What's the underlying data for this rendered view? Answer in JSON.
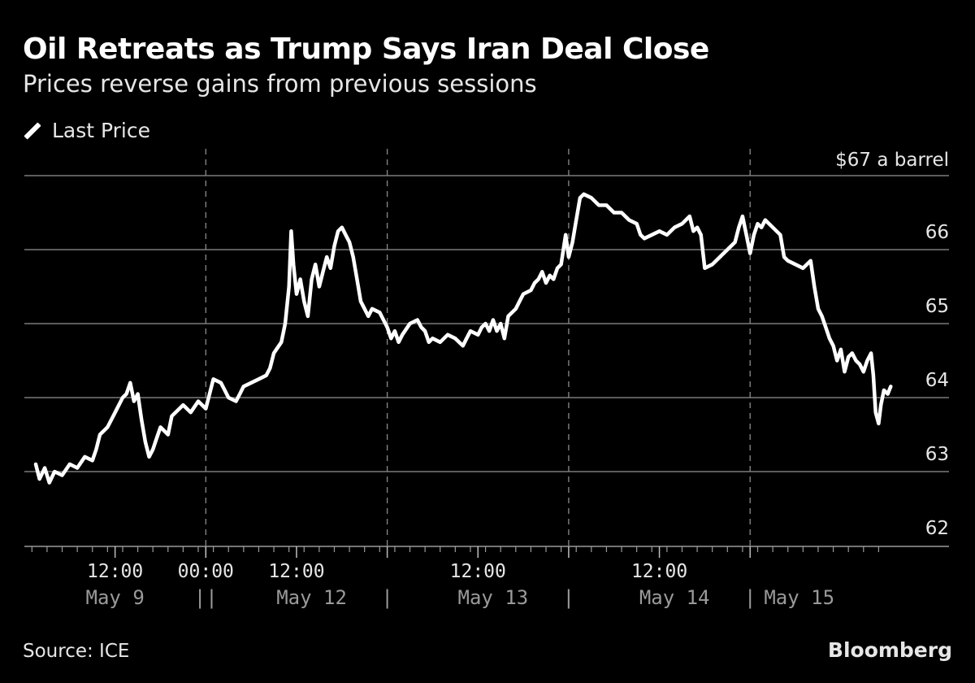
{
  "chart_data": {
    "type": "line",
    "title": "Oil Retreats as Trump Says Iran Deal Close",
    "subtitle": "Prices reverse gains from previous sessions",
    "legend": [
      "Last Price"
    ],
    "unit_label": "$67 a barrel",
    "source": "Source: ICE",
    "brand": "Bloomberg",
    "ylim": [
      62,
      67
    ],
    "y_ticks": [
      62,
      63,
      64,
      65,
      66,
      67
    ],
    "y_tick_labels": [
      "62",
      "63",
      "64",
      "65",
      "66",
      "$67 a barrel"
    ],
    "x_time_ticks": [
      {
        "x": 12,
        "label": "12:00"
      },
      {
        "x": 24,
        "label": "00:00"
      },
      {
        "x": 36,
        "label": "12:00"
      },
      {
        "x": 60,
        "label": "12:00"
      },
      {
        "x": 84,
        "label": "12:00"
      }
    ],
    "x_date_labels": [
      {
        "x": 12,
        "label": "May 9"
      },
      {
        "x": 24,
        "label": "||"
      },
      {
        "x": 38,
        "label": "May 12"
      },
      {
        "x": 48,
        "label": "|"
      },
      {
        "x": 62,
        "label": "May 13"
      },
      {
        "x": 72,
        "label": "|"
      },
      {
        "x": 86,
        "label": "May 14"
      },
      {
        "x": 96,
        "label": "|"
      },
      {
        "x": 102.5,
        "label": "May 15"
      }
    ],
    "session_dividers": [
      24,
      48,
      72,
      96
    ],
    "xlim": [
      0,
      115
    ],
    "series": [
      {
        "name": "Last Price",
        "points": [
          [
            1.5,
            63.1
          ],
          [
            2,
            62.9
          ],
          [
            2.7,
            63.05
          ],
          [
            3.3,
            62.85
          ],
          [
            4,
            63.0
          ],
          [
            5,
            62.95
          ],
          [
            6,
            63.1
          ],
          [
            7,
            63.05
          ],
          [
            8,
            63.2
          ],
          [
            9,
            63.15
          ],
          [
            9.5,
            63.3
          ],
          [
            10,
            63.5
          ],
          [
            11,
            63.6
          ],
          [
            12,
            63.8
          ],
          [
            13,
            64.0
          ],
          [
            13.5,
            64.05
          ],
          [
            14,
            64.2
          ],
          [
            14.5,
            63.95
          ],
          [
            15,
            64.05
          ],
          [
            15.5,
            63.7
          ],
          [
            16,
            63.4
          ],
          [
            16.5,
            63.2
          ],
          [
            17,
            63.3
          ],
          [
            17.5,
            63.45
          ],
          [
            18,
            63.6
          ],
          [
            19,
            63.5
          ],
          [
            19.5,
            63.75
          ],
          [
            20,
            63.8
          ],
          [
            21,
            63.9
          ],
          [
            22,
            63.8
          ],
          [
            23,
            63.95
          ],
          [
            24,
            63.85
          ],
          [
            25,
            64.25
          ],
          [
            26,
            64.2
          ],
          [
            26.5,
            64.1
          ],
          [
            27,
            64.0
          ],
          [
            28,
            63.95
          ],
          [
            28.5,
            64.05
          ],
          [
            29,
            64.15
          ],
          [
            30,
            64.2
          ],
          [
            31,
            64.25
          ],
          [
            32,
            64.3
          ],
          [
            32.5,
            64.4
          ],
          [
            33,
            64.6
          ],
          [
            34,
            64.75
          ],
          [
            34.5,
            65.0
          ],
          [
            35,
            65.5
          ],
          [
            35.3,
            66.25
          ],
          [
            35.6,
            65.8
          ],
          [
            36,
            65.4
          ],
          [
            36.5,
            65.6
          ],
          [
            37,
            65.3
          ],
          [
            37.5,
            65.1
          ],
          [
            38,
            65.6
          ],
          [
            38.5,
            65.8
          ],
          [
            39,
            65.5
          ],
          [
            39.5,
            65.7
          ],
          [
            40,
            65.9
          ],
          [
            40.5,
            65.75
          ],
          [
            41,
            66.05
          ],
          [
            41.5,
            66.25
          ],
          [
            42,
            66.3
          ],
          [
            42.5,
            66.2
          ],
          [
            43,
            66.1
          ],
          [
            43.5,
            65.9
          ],
          [
            44,
            65.6
          ],
          [
            44.5,
            65.3
          ],
          [
            45,
            65.2
          ],
          [
            45.5,
            65.1
          ],
          [
            46,
            65.2
          ],
          [
            47,
            65.15
          ],
          [
            47.5,
            65.05
          ],
          [
            48,
            64.95
          ],
          [
            48.5,
            64.8
          ],
          [
            49,
            64.9
          ],
          [
            49.5,
            64.75
          ],
          [
            50,
            64.85
          ],
          [
            51,
            65.0
          ],
          [
            52,
            65.05
          ],
          [
            52.5,
            64.95
          ],
          [
            53,
            64.9
          ],
          [
            53.5,
            64.75
          ],
          [
            54,
            64.8
          ],
          [
            55,
            64.75
          ],
          [
            56,
            64.85
          ],
          [
            57,
            64.8
          ],
          [
            58,
            64.7
          ],
          [
            58.5,
            64.8
          ],
          [
            59,
            64.9
          ],
          [
            60,
            64.85
          ],
          [
            60.5,
            64.95
          ],
          [
            61,
            65.0
          ],
          [
            61.5,
            64.9
          ],
          [
            62,
            65.05
          ],
          [
            62.5,
            64.9
          ],
          [
            63,
            65.0
          ],
          [
            63.5,
            64.8
          ],
          [
            64,
            65.1
          ],
          [
            65,
            65.2
          ],
          [
            65.5,
            65.3
          ],
          [
            66,
            65.4
          ],
          [
            67,
            65.45
          ],
          [
            67.5,
            65.55
          ],
          [
            68,
            65.6
          ],
          [
            68.5,
            65.7
          ],
          [
            69,
            65.55
          ],
          [
            69.5,
            65.65
          ],
          [
            70,
            65.6
          ],
          [
            70.5,
            65.75
          ],
          [
            71,
            65.8
          ],
          [
            71.3,
            66.0
          ],
          [
            71.6,
            66.2
          ],
          [
            72,
            65.9
          ],
          [
            72.5,
            66.1
          ],
          [
            73,
            66.4
          ],
          [
            73.5,
            66.7
          ],
          [
            74,
            66.75
          ],
          [
            75,
            66.7
          ],
          [
            76,
            66.6
          ],
          [
            77,
            66.6
          ],
          [
            78,
            66.5
          ],
          [
            79,
            66.5
          ],
          [
            80,
            66.4
          ],
          [
            81,
            66.35
          ],
          [
            81.5,
            66.2
          ],
          [
            82,
            66.15
          ],
          [
            83,
            66.2
          ],
          [
            84,
            66.25
          ],
          [
            85,
            66.2
          ],
          [
            86,
            66.3
          ],
          [
            87,
            66.35
          ],
          [
            88,
            66.45
          ],
          [
            88.5,
            66.25
          ],
          [
            89,
            66.3
          ],
          [
            89.5,
            66.2
          ],
          [
            90,
            65.75
          ],
          [
            91,
            65.8
          ],
          [
            92,
            65.9
          ],
          [
            93,
            66.0
          ],
          [
            94,
            66.1
          ],
          [
            94.5,
            66.3
          ],
          [
            95,
            66.45
          ],
          [
            95.5,
            66.2
          ],
          [
            96,
            65.95
          ],
          [
            96.5,
            66.2
          ],
          [
            97,
            66.35
          ],
          [
            97.5,
            66.3
          ],
          [
            98,
            66.4
          ],
          [
            99,
            66.3
          ],
          [
            100,
            66.2
          ],
          [
            100.5,
            65.9
          ],
          [
            101,
            65.85
          ],
          [
            102,
            65.8
          ],
          [
            103,
            65.75
          ],
          [
            103.5,
            65.8
          ],
          [
            104,
            65.85
          ],
          [
            104.5,
            65.5
          ],
          [
            105,
            65.2
          ],
          [
            105.5,
            65.1
          ],
          [
            106,
            64.95
          ],
          [
            106.5,
            64.8
          ],
          [
            107,
            64.7
          ],
          [
            107.5,
            64.5
          ],
          [
            108,
            64.65
          ],
          [
            108.5,
            64.35
          ],
          [
            109,
            64.55
          ],
          [
            109.5,
            64.6
          ],
          [
            110,
            64.5
          ],
          [
            110.5,
            64.45
          ],
          [
            111,
            64.35
          ],
          [
            111.5,
            64.5
          ],
          [
            112,
            64.6
          ],
          [
            112.3,
            64.3
          ],
          [
            112.6,
            63.8
          ],
          [
            113,
            63.65
          ],
          [
            113.3,
            63.9
          ],
          [
            113.7,
            64.1
          ],
          [
            114.2,
            64.05
          ],
          [
            114.6,
            64.15
          ]
        ]
      }
    ]
  }
}
